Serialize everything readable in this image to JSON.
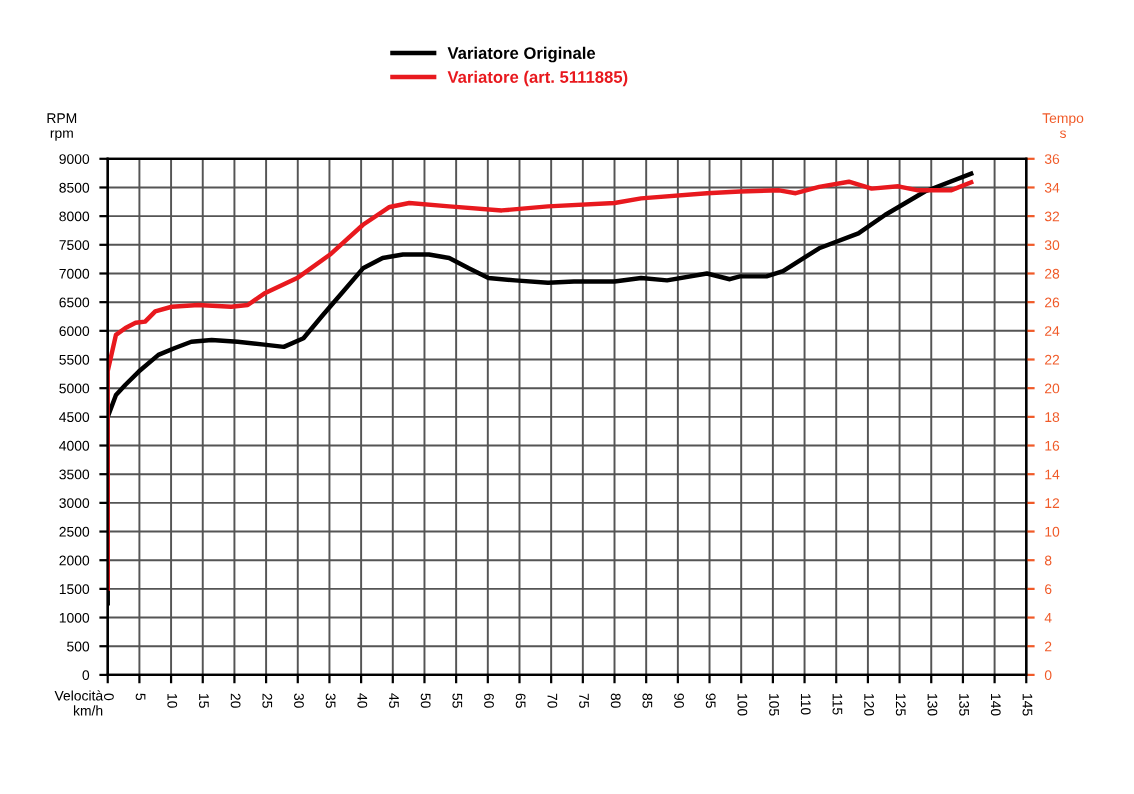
{
  "chart_data": {
    "type": "line",
    "xlabel": "Velocità\nkm/h",
    "ylabel": "RPM\nrpm",
    "y2label": "Tempo\ns",
    "xlim": [
      0,
      145
    ],
    "xticks": [
      0,
      5,
      10,
      15,
      20,
      25,
      30,
      35,
      40,
      45,
      50,
      55,
      60,
      65,
      70,
      75,
      80,
      85,
      90,
      95,
      100,
      105,
      110,
      115,
      120,
      125,
      130,
      135,
      140,
      145
    ],
    "ylim": [
      0,
      9000
    ],
    "yticks": [
      0,
      500,
      1000,
      1500,
      2000,
      2500,
      3000,
      3500,
      4000,
      4500,
      5000,
      5500,
      6000,
      6500,
      7000,
      7500,
      8000,
      8500,
      9000
    ],
    "y2lim": [
      0,
      36
    ],
    "y2ticks": [
      0,
      2,
      4,
      6,
      8,
      10,
      12,
      14,
      16,
      18,
      20,
      22,
      24,
      26,
      28,
      30,
      32,
      34,
      36
    ],
    "grid": true,
    "legend": "top",
    "line_style": "solid",
    "marker": "none",
    "series": [
      {
        "name": "Variatore Originale",
        "color": "#000000",
        "x": [
          0,
          0,
          1.3,
          2.8,
          4.9,
          8,
          10.6,
          13.2,
          16.4,
          20.5,
          24.7,
          27.8,
          30.9,
          34,
          37.2,
          40.3,
          43.4,
          46.6,
          50.7,
          53.9,
          57,
          60.1,
          64.3,
          69.5,
          73.6,
          80,
          84.2,
          88.3,
          94.6,
          98.2,
          99.8,
          104,
          106.6,
          112.3,
          118.5,
          122.7,
          129,
          136.3
        ],
        "values": [
          1250,
          4500,
          4880,
          5060,
          5290,
          5580,
          5700,
          5810,
          5840,
          5810,
          5760,
          5720,
          5870,
          6280,
          6690,
          7090,
          7270,
          7330,
          7330,
          7270,
          7090,
          6920,
          6880,
          6840,
          6860,
          6860,
          6920,
          6880,
          7000,
          6900,
          6950,
          6950,
          7040,
          7440,
          7700,
          8020,
          8430,
          8740
        ]
      },
      {
        "name": "Variatore (art. 5111885)",
        "color": "#e8191e",
        "x": [
          0,
          0,
          1.3,
          2.8,
          4.4,
          5.9,
          7.5,
          10.1,
          14.3,
          19.5,
          22.1,
          24.7,
          29.9,
          35.1,
          40.3,
          44.5,
          47.6,
          53.9,
          62.2,
          69.5,
          80,
          84.2,
          94.6,
          99.8,
          106,
          108.6,
          112.3,
          117,
          120.6,
          124.8,
          127.9,
          133.1,
          136.3
        ],
        "values": [
          1500,
          5300,
          5930,
          6050,
          6140,
          6160,
          6340,
          6420,
          6450,
          6420,
          6450,
          6650,
          6920,
          7330,
          7850,
          8160,
          8230,
          8170,
          8100,
          8170,
          8230,
          8310,
          8400,
          8430,
          8450,
          8400,
          8510,
          8600,
          8480,
          8520,
          8450,
          8450,
          8590
        ]
      }
    ]
  }
}
